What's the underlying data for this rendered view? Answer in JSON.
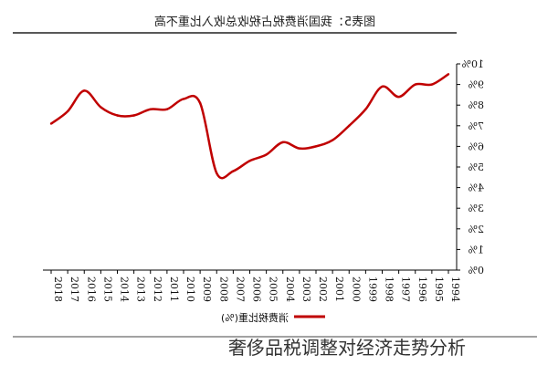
{
  "caption": "奢侈品税调整对经济走势分析",
  "chart_data": {
    "type": "line",
    "title": "图表5：我国消费税占税收总收入比重不高",
    "xlabel": "",
    "ylabel": "",
    "ylim": [
      0,
      10
    ],
    "y_ticks": [
      "0%",
      "1%",
      "2%",
      "3%",
      "4%",
      "5%",
      "6%",
      "7%",
      "8%",
      "9%",
      "10%"
    ],
    "grid": false,
    "legend_position": "bottom-center",
    "mirrored": true,
    "series_color": "#c00000",
    "x_tick_labels": [
      "1994",
      "1995",
      "1996",
      "1997",
      "1998",
      "1999",
      "2000",
      "2001",
      "2002",
      "2003",
      "2004",
      "2005",
      "2006",
      "2007",
      "2008",
      "2009",
      "2010",
      "2011",
      "2012",
      "2013",
      "2014",
      "2015",
      "2016",
      "2017",
      "2018"
    ],
    "series": [
      {
        "name": "消费税比重(%)",
        "x": [
          1994,
          1995,
          1996,
          1997,
          1998,
          1999,
          2000,
          2001,
          2002,
          2003,
          2004,
          2005,
          2006,
          2007,
          2008,
          2009,
          2010,
          2011,
          2012,
          2013,
          2014,
          2015,
          2016,
          2017,
          2018
        ],
        "values": [
          9.5,
          9.0,
          9.0,
          8.4,
          8.9,
          7.8,
          7.0,
          6.3,
          6.0,
          5.9,
          6.2,
          5.6,
          5.3,
          4.8,
          4.7,
          8.1,
          8.3,
          7.8,
          7.8,
          7.5,
          7.5,
          7.9,
          8.7,
          7.7,
          7.1
        ]
      }
    ]
  }
}
